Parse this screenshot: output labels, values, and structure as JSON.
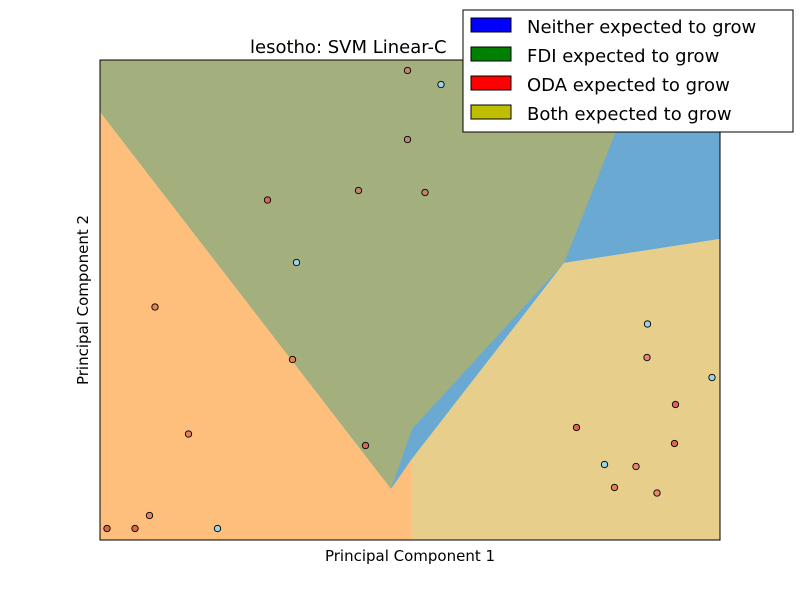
{
  "chart_data": {
    "type": "scatter",
    "title": "lesotho: SVM Linear-C",
    "xlabel": "Principal Component 1",
    "ylabel": "Principal Component 2",
    "xlim": [
      0,
      620
    ],
    "ylim": [
      0,
      480
    ],
    "grid": false,
    "ticks": false,
    "legend_placement": "top-right (overlapping title)",
    "legend": [
      {
        "label": "Neither expected to grow",
        "color": "#0000ff"
      },
      {
        "label": "FDI expected to grow",
        "color": "#008000"
      },
      {
        "label": "ODA expected to grow",
        "color": "#ff0000"
      },
      {
        "label": "Both expected to grow",
        "color": "#bfbf00"
      }
    ],
    "regions": [
      {
        "class": "Neither expected to grow",
        "color": "#6aaad2",
        "polygon": [
          [
            0,
            480
          ],
          [
            620,
            480
          ],
          [
            620,
            301
          ],
          [
            464,
            277
          ],
          [
            291,
            51
          ],
          [
            0,
            428
          ]
        ]
      },
      {
        "class": "FDI expected to grow",
        "color": "#a3b07e",
        "polygon": [
          [
            0,
            480
          ],
          [
            544,
            480
          ],
          [
            464,
            277
          ],
          [
            312,
            111
          ],
          [
            291,
            51
          ],
          [
            0,
            428
          ]
        ]
      },
      {
        "class": "ODA expected to grow",
        "color": "#fdbf7b",
        "polygon": [
          [
            0,
            428
          ],
          [
            291,
            51
          ],
          [
            311,
            80
          ],
          [
            311,
            0
          ],
          [
            0,
            0
          ]
        ]
      },
      {
        "class": "Both expected to grow",
        "color": "#e8ce8b",
        "polygon": [
          [
            311,
            0
          ],
          [
            311,
            80
          ],
          [
            464,
            277
          ],
          [
            620,
            301
          ],
          [
            620,
            0
          ]
        ]
      }
    ],
    "points": [
      {
        "x": 307.5,
        "y": 469.5,
        "color": "#c2866d"
      },
      {
        "x": 341,
        "y": 455.5,
        "color": "#99d5e9"
      },
      {
        "x": 307.5,
        "y": 400.5,
        "color": "#c2866d"
      },
      {
        "x": 258.5,
        "y": 349.5,
        "color": "#c2866d"
      },
      {
        "x": 325,
        "y": 347.5,
        "color": "#c2866d"
      },
      {
        "x": 167.5,
        "y": 340,
        "color": "#d6694e"
      },
      {
        "x": 196.5,
        "y": 277.5,
        "color": "#99d5e9"
      },
      {
        "x": 55,
        "y": 233,
        "color": "#e0845d"
      },
      {
        "x": 192.5,
        "y": 180.5,
        "color": "#e0845d"
      },
      {
        "x": 88.5,
        "y": 106,
        "color": "#e0845d"
      },
      {
        "x": 265.5,
        "y": 94.5,
        "color": "#d6694e"
      },
      {
        "x": 49.5,
        "y": 24.5,
        "color": "#e0845d"
      },
      {
        "x": 7,
        "y": 11.5,
        "color": "#d6694e"
      },
      {
        "x": 35,
        "y": 11.5,
        "color": "#d6694e"
      },
      {
        "x": 117.5,
        "y": 11.5,
        "color": "#99d5e9"
      },
      {
        "x": 547.5,
        "y": 216,
        "color": "#99d5e9"
      },
      {
        "x": 547,
        "y": 182.5,
        "color": "#e8876b"
      },
      {
        "x": 612,
        "y": 162.5,
        "color": "#99d5e9"
      },
      {
        "x": 575.5,
        "y": 135.5,
        "color": "#d6694e"
      },
      {
        "x": 476.5,
        "y": 112.5,
        "color": "#d6694e"
      },
      {
        "x": 574.5,
        "y": 96.5,
        "color": "#d6694e"
      },
      {
        "x": 504.5,
        "y": 75.5,
        "color": "#99d5e9"
      },
      {
        "x": 536,
        "y": 73.5,
        "color": "#e8876b"
      },
      {
        "x": 514.5,
        "y": 52.5,
        "color": "#e0845d"
      },
      {
        "x": 557,
        "y": 47,
        "color": "#e8876b"
      }
    ]
  }
}
